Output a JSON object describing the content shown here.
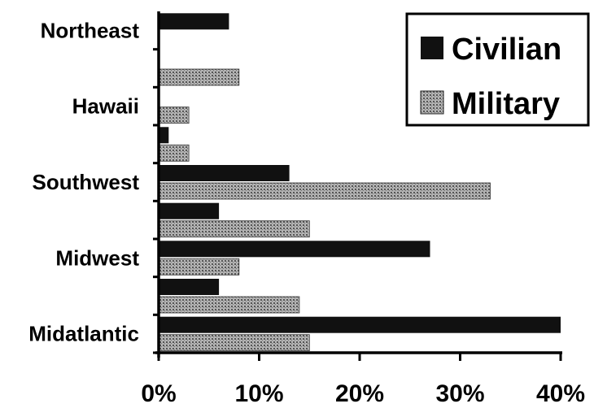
{
  "chart_data": {
    "type": "bar",
    "orientation": "horizontal",
    "categories": [
      "Midatlantic",
      "",
      "Midwest",
      "",
      "Southwest",
      "",
      "Hawaii",
      "",
      "Northeast"
    ],
    "series": [
      {
        "name": "Civilian",
        "values": [
          40,
          6,
          27,
          6,
          13,
          1,
          0,
          0,
          7
        ],
        "color": "#111111",
        "pattern": "solid"
      },
      {
        "name": "Military",
        "values": [
          15,
          14,
          8,
          15,
          33,
          3,
          3,
          8,
          0
        ],
        "color": "#9a9a9a",
        "pattern": "dotted"
      }
    ],
    "xticks": [
      "0%",
      "10%",
      "20%",
      "30%",
      "40%"
    ],
    "xlim": [
      0,
      40
    ],
    "legend": {
      "position": "top-right",
      "entries": [
        "Civilian",
        "Military"
      ]
    },
    "grid": false
  }
}
